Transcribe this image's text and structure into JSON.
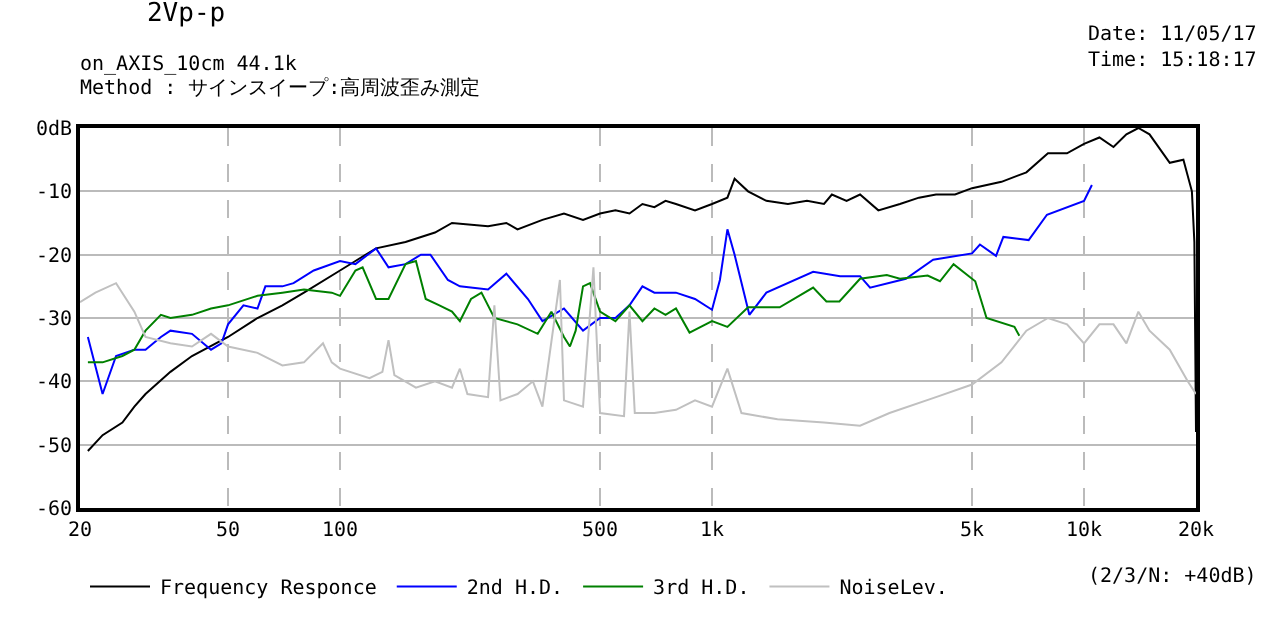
{
  "chart_data": {
    "type": "line",
    "title": "2Vp-p",
    "subtitle": "on_AXIS_10cm 44.1k",
    "annotations": [
      "Date: 11/05/17",
      "Time: 15:18:17",
      "Method : サインスイープ:高周波歪み測定",
      "(2/3/N: +40dB)"
    ],
    "log": "x",
    "grid": true,
    "legend": "bottom",
    "marker": "none",
    "line_style": "solid",
    "xlim": [
      20,
      20000
    ],
    "xticks": [
      20,
      50,
      100,
      500,
      {
        "value": 1000,
        "label": "1k"
      },
      {
        "value": 5000,
        "label": "5k"
      },
      {
        "value": 10000,
        "label": "10k"
      },
      {
        "value": 20000,
        "label": "20k"
      }
    ],
    "ylim": [
      -60,
      0
    ],
    "yticks": [
      {
        "value": 0,
        "label": "0dB"
      },
      -10,
      -20,
      -30,
      -40,
      -50,
      -60
    ],
    "series": [
      {
        "name": "Frequency Responce",
        "color": "#000000",
        "x": [
          21,
          23,
          26,
          28,
          30,
          35,
          40,
          50,
          60,
          70,
          80,
          100,
          110,
          125,
          150,
          180,
          200,
          250,
          280,
          300,
          350,
          400,
          450,
          500,
          550,
          600,
          650,
          700,
          750,
          800,
          900,
          1000,
          1100,
          1150,
          1250,
          1400,
          1600,
          1800,
          2000,
          2100,
          2300,
          2500,
          2800,
          3200,
          3600,
          4000,
          4500,
          5000,
          6000,
          7000,
          8000,
          9000,
          10000,
          11000,
          12000,
          13000,
          14000,
          15000,
          17000,
          18500,
          19500,
          19800,
          20000
        ],
        "values": [
          -51,
          -48.5,
          -46.5,
          -44,
          -42,
          -38.5,
          -36,
          -33,
          -30,
          -28,
          -26,
          -22.5,
          -21,
          -19,
          -18,
          -16.5,
          -15,
          -15.5,
          -15,
          -16,
          -14.5,
          -13.5,
          -14.5,
          -13.5,
          -13,
          -13.5,
          -12,
          -12.5,
          -11.5,
          -12,
          -13,
          -12,
          -11,
          -8,
          -10,
          -11.5,
          -12,
          -11.5,
          -12,
          -10.5,
          -11.5,
          -10.5,
          -13,
          -12,
          -11,
          -10.5,
          -10.5,
          -9.5,
          -8.5,
          -7,
          -4,
          -4,
          -2.5,
          -1.5,
          -3,
          -1,
          0,
          -1,
          -5.5,
          -5,
          -10,
          -18,
          -48
        ]
      },
      {
        "name": "2nd H.D.",
        "color": "#0000ff",
        "x": [
          21,
          23,
          25,
          28,
          30,
          33,
          35,
          40,
          45,
          48,
          50,
          55,
          60,
          63,
          70,
          75,
          85,
          100,
          110,
          125,
          135,
          150,
          165,
          175,
          195,
          210,
          250,
          280,
          320,
          350,
          400,
          450,
          500,
          550,
          600,
          650,
          700,
          800,
          900,
          1000,
          1050,
          1100,
          1150,
          1260,
          1400,
          1870,
          2210,
          2500,
          2660,
          3320,
          3930,
          5000,
          5250,
          5800,
          6070,
          7100,
          7950,
          10000,
          10500
        ],
        "values": [
          -33,
          -42,
          -36,
          -35,
          -35,
          -33,
          -32,
          -32.5,
          -35,
          -34,
          -31,
          -28,
          -28.5,
          -25,
          -25,
          -24.5,
          -22.5,
          -21,
          -21.5,
          -19,
          -22,
          -21.5,
          -20,
          -20,
          -24,
          -25,
          -25.5,
          -23,
          -27,
          -30.5,
          -28.5,
          -32,
          -30,
          -30,
          -28,
          -25,
          -26,
          -26,
          -27,
          -28.7,
          -24,
          -16,
          -20,
          -29.5,
          -26,
          -22.7,
          -23.4,
          -23.4,
          -25.2,
          -23.8,
          -20.8,
          -19.8,
          -18.4,
          -20.2,
          -17.2,
          -17.7,
          -13.7,
          -11.5,
          -9
        ]
      },
      {
        "name": "3rd H.D.",
        "color": "#008000",
        "x": [
          21,
          23,
          26,
          28,
          30,
          33,
          35,
          40,
          45,
          50,
          60,
          70,
          80,
          95,
          100,
          110,
          115,
          125,
          135,
          150,
          160,
          170,
          185,
          200,
          210,
          225,
          240,
          260,
          300,
          340,
          370,
          400,
          415,
          430,
          450,
          470,
          500,
          550,
          600,
          650,
          700,
          750,
          800,
          870,
          1000,
          1100,
          1250,
          1520,
          1870,
          2030,
          2200,
          2500,
          2950,
          3200,
          3800,
          4100,
          4460,
          5100,
          5470,
          6500,
          6700
        ],
        "values": [
          -37,
          -37,
          -36,
          -35,
          -32,
          -29.5,
          -30,
          -29.5,
          -28.5,
          -28,
          -26.5,
          -26,
          -25.5,
          -26,
          -26.5,
          -22.5,
          -22,
          -27,
          -27,
          -21.5,
          -21,
          -27,
          -28,
          -29,
          -30.5,
          -27,
          -26,
          -30,
          -31,
          -32.5,
          -29,
          -33,
          -34.5,
          -32,
          -25,
          -24.5,
          -29,
          -30.5,
          -28,
          -30.5,
          -28.5,
          -29.5,
          -28.5,
          -32.3,
          -30.5,
          -31.4,
          -28.3,
          -28.3,
          -25.2,
          -27.4,
          -27.4,
          -23.8,
          -23.2,
          -23.8,
          -23.3,
          -24.2,
          -21.5,
          -24.2,
          -30,
          -31.4,
          -32.8
        ]
      },
      {
        "name": "NoiseLev.",
        "color": "#c0c0c0",
        "x": [
          20,
          22,
          25,
          28,
          30,
          35,
          40,
          45,
          50,
          60,
          70,
          80,
          90,
          95,
          100,
          120,
          130,
          135,
          140,
          160,
          180,
          200,
          210,
          220,
          250,
          260,
          270,
          300,
          330,
          350,
          390,
          400,
          450,
          480,
          500,
          580,
          600,
          620,
          700,
          800,
          900,
          1000,
          1100,
          1200,
          1500,
          2000,
          2500,
          3000,
          4000,
          5000,
          6000,
          7000,
          8000,
          9000,
          10000,
          11000,
          12000,
          13000,
          14000,
          15000,
          17000,
          19000,
          20000
        ],
        "values": [
          -27.5,
          -26,
          -24.5,
          -29,
          -33,
          -34,
          -34.5,
          -32.5,
          -34.5,
          -35.5,
          -37.5,
          -37,
          -34,
          -37,
          -38,
          -39.5,
          -38.5,
          -33.5,
          -39,
          -41,
          -40,
          -41,
          -38,
          -42,
          -42.5,
          -28,
          -43,
          -42,
          -40,
          -44,
          -24,
          -43,
          -44,
          -22,
          -45,
          -45.5,
          -29,
          -45,
          -45,
          -44.5,
          -43,
          -44,
          -38,
          -45,
          -46,
          -46.5,
          -47,
          -45,
          -42.5,
          -40.5,
          -37,
          -32,
          -30,
          -31,
          -34,
          -31,
          -31,
          -34,
          -29,
          -32,
          -35,
          -40,
          -42
        ]
      }
    ]
  }
}
